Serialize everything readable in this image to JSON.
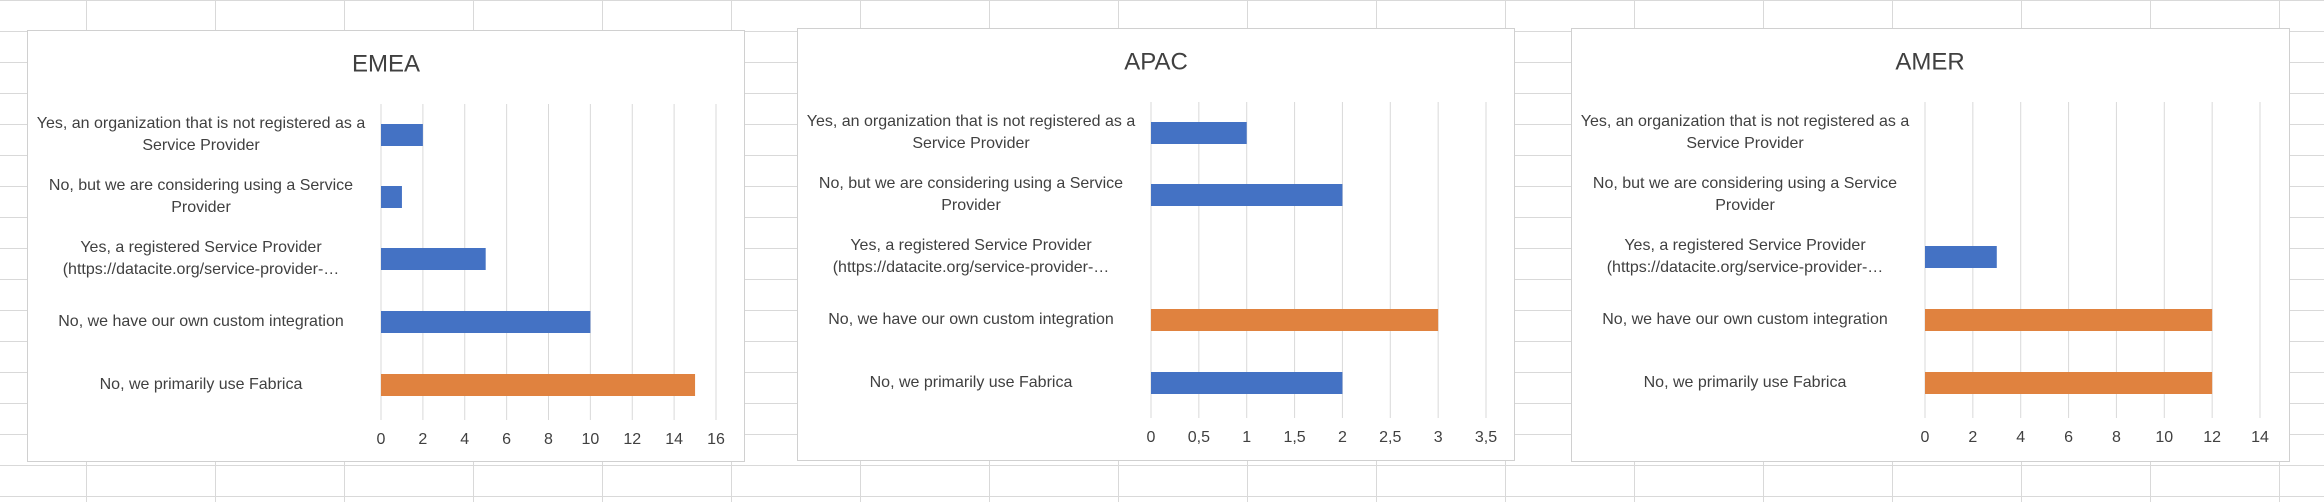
{
  "chart_data": [
    {
      "type": "bar",
      "orientation": "horizontal",
      "title": "EMEA",
      "categories": [
        "Yes, an organization that is not registered as a Service Provider",
        "No, but we are considering using a Service Provider",
        "Yes, a registered Service Provider (https://datacite.org/service-provider-…",
        "No, we have our own custom integration",
        "No, we primarily use Fabrica"
      ],
      "values": [
        2,
        1,
        5,
        10,
        15
      ],
      "colors": [
        "#4472c4",
        "#4472c4",
        "#4472c4",
        "#4472c4",
        "#e0823f"
      ],
      "xlim": [
        0,
        16
      ],
      "xticks": [
        0,
        2,
        4,
        6,
        8,
        10,
        12,
        14,
        16
      ],
      "grid": true
    },
    {
      "type": "bar",
      "orientation": "horizontal",
      "title": "APAC",
      "categories": [
        "Yes, an organization that is not registered as a Service Provider",
        "No, but we are considering using a Service Provider",
        "Yes, a registered Service Provider (https://datacite.org/service-provider-…",
        "No, we have our own custom integration",
        "No, we primarily use Fabrica"
      ],
      "values": [
        1,
        2,
        0,
        3,
        2
      ],
      "colors": [
        "#4472c4",
        "#4472c4",
        "#4472c4",
        "#e0823f",
        "#4472c4"
      ],
      "xlim": [
        0,
        3.5
      ],
      "xticks": [
        0,
        {
          "value": 0.5,
          "label": "0,5"
        },
        1,
        {
          "value": 1.5,
          "label": "1,5"
        },
        2,
        {
          "value": 2.5,
          "label": "2,5"
        },
        3,
        {
          "value": 3.5,
          "label": "3,5"
        }
      ],
      "grid": true
    },
    {
      "type": "bar",
      "orientation": "horizontal",
      "title": "AMER",
      "categories": [
        "Yes, an organization that is not registered as a Service Provider",
        "No, but we are considering using a Service Provider",
        "Yes, a registered Service Provider (https://datacite.org/service-provider-…",
        "No, we have our own custom integration",
        "No, we primarily use Fabrica"
      ],
      "values": [
        0,
        0,
        3,
        12,
        12
      ],
      "colors": [
        "#4472c4",
        "#4472c4",
        "#4472c4",
        "#e0823f",
        "#e0823f"
      ],
      "xlim": [
        0,
        14
      ],
      "xticks": [
        0,
        2,
        4,
        6,
        8,
        10,
        12,
        14
      ],
      "grid": true
    }
  ]
}
